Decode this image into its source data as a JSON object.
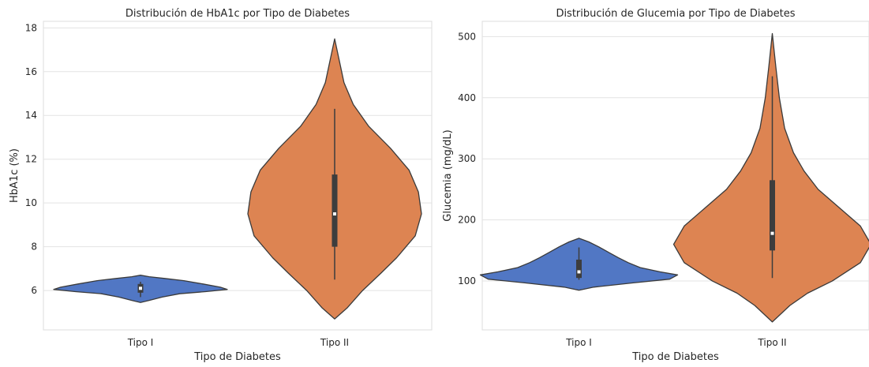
{
  "chart_data": [
    {
      "type": "violin",
      "title": "Distribución de HbA1c por Tipo de Diabetes",
      "xlabel": "Tipo de Diabetes",
      "ylabel": "HbA1c (%)",
      "categories": [
        "Tipo I",
        "Tipo II"
      ],
      "ylim": [
        4.2,
        18.3
      ],
      "yticks": [
        6,
        8,
        10,
        12,
        14,
        16,
        18
      ],
      "grid": true,
      "colors": [
        "#4C72B0",
        "#DD8452"
      ],
      "violins": [
        {
          "category": "Tipo I",
          "color": "#5177C4",
          "density": [
            [
              5.45,
              0.0
            ],
            [
              5.55,
              0.1
            ],
            [
              5.7,
              0.25
            ],
            [
              5.85,
              0.45
            ],
            [
              5.95,
              0.75
            ],
            [
              6.05,
              1.0
            ],
            [
              6.15,
              0.92
            ],
            [
              6.3,
              0.72
            ],
            [
              6.45,
              0.5
            ],
            [
              6.55,
              0.28
            ],
            [
              6.63,
              0.1
            ],
            [
              6.7,
              0.0
            ]
          ],
          "box": [
            5.9,
            6.3
          ],
          "whisker": [
            5.7,
            6.4
          ],
          "median": 6.1
        },
        {
          "category": "Tipo II",
          "color": "#DD8452",
          "density": [
            [
              4.7,
              0.0
            ],
            [
              5.2,
              0.04
            ],
            [
              6.0,
              0.09
            ],
            [
              6.8,
              0.15
            ],
            [
              7.5,
              0.2
            ],
            [
              8.5,
              0.26
            ],
            [
              9.5,
              0.28
            ],
            [
              10.5,
              0.27
            ],
            [
              11.5,
              0.24
            ],
            [
              12.5,
              0.18
            ],
            [
              13.5,
              0.11
            ],
            [
              14.5,
              0.06
            ],
            [
              15.5,
              0.03
            ],
            [
              16.5,
              0.015
            ],
            [
              17.5,
              0.0
            ]
          ],
          "box": [
            8.0,
            11.3
          ],
          "whisker": [
            6.5,
            14.3
          ],
          "median": 9.5
        }
      ]
    },
    {
      "type": "violin",
      "title": "Distribución de Glucemia por Tipo de Diabetes",
      "xlabel": "Tipo de Diabetes",
      "ylabel": "Glucemia (mg/dL)",
      "categories": [
        "Tipo I",
        "Tipo II"
      ],
      "ylim": [
        20,
        525
      ],
      "yticks": [
        100,
        200,
        300,
        400,
        500
      ],
      "grid": true,
      "colors": [
        "#4C72B0",
        "#DD8452"
      ],
      "violins": [
        {
          "category": "Tipo I",
          "color": "#5177C4",
          "density": [
            [
              85,
              0.0
            ],
            [
              90,
              0.15
            ],
            [
              97,
              0.55
            ],
            [
              103,
              0.92
            ],
            [
              110,
              1.0
            ],
            [
              115,
              0.82
            ],
            [
              122,
              0.62
            ],
            [
              130,
              0.5
            ],
            [
              138,
              0.4
            ],
            [
              147,
              0.3
            ],
            [
              156,
              0.2
            ],
            [
              164,
              0.1
            ],
            [
              170,
              0.0
            ]
          ],
          "box": [
            105,
            135
          ],
          "whisker": [
            102,
            155
          ],
          "median": 115
        },
        {
          "category": "Tipo II",
          "color": "#DD8452",
          "density": [
            [
              33,
              0.0
            ],
            [
              60,
              0.05
            ],
            [
              80,
              0.1
            ],
            [
              100,
              0.17
            ],
            [
              130,
              0.25
            ],
            [
              160,
              0.28
            ],
            [
              190,
              0.25
            ],
            [
              220,
              0.19
            ],
            [
              250,
              0.13
            ],
            [
              280,
              0.09
            ],
            [
              310,
              0.06
            ],
            [
              350,
              0.035
            ],
            [
              400,
              0.02
            ],
            [
              450,
              0.01
            ],
            [
              505,
              0.0
            ]
          ],
          "box": [
            150,
            265
          ],
          "whisker": [
            105,
            435
          ],
          "median": 178
        }
      ]
    }
  ]
}
